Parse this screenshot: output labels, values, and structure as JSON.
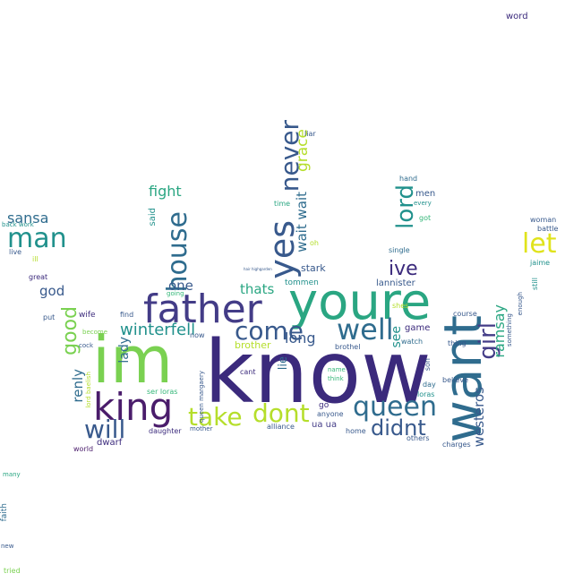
{
  "palette": {
    "navy": "#3b2a7c",
    "indigo": "#433c87",
    "blue": "#38598c",
    "steel": "#2f6c8e",
    "teal": "#21918c",
    "sea": "#2aa682",
    "green": "#35b779",
    "lime": "#7ad151",
    "yellowgreen": "#b5de2b",
    "yellow": "#e0e31c",
    "purple": "#4a1c6b"
  },
  "words": [
    {
      "text": "know",
      "color": "navy"
    },
    {
      "text": "im",
      "color": "lime"
    },
    {
      "text": "youre",
      "color": "sea"
    },
    {
      "text": "want",
      "color": "steel"
    },
    {
      "text": "father",
      "color": "indigo"
    },
    {
      "text": "king",
      "color": "purple"
    },
    {
      "text": "yes",
      "color": "blue"
    },
    {
      "text": "never",
      "color": "blue"
    },
    {
      "text": "house",
      "color": "steel"
    },
    {
      "text": "queen",
      "color": "steel"
    },
    {
      "text": "well",
      "color": "steel"
    },
    {
      "text": "come",
      "color": "blue"
    },
    {
      "text": "dont",
      "color": "yellowgreen"
    },
    {
      "text": "take",
      "color": "yellowgreen"
    },
    {
      "text": "will",
      "color": "blue"
    },
    {
      "text": "man",
      "color": "teal"
    },
    {
      "text": "let",
      "color": "yellow"
    },
    {
      "text": "lord",
      "color": "teal"
    },
    {
      "text": "girl",
      "color": "indigo"
    },
    {
      "text": "didnt",
      "color": "blue"
    },
    {
      "text": "good",
      "color": "lime"
    },
    {
      "text": "ive",
      "color": "navy"
    },
    {
      "text": "ramsay",
      "color": "sea"
    },
    {
      "text": "winterfell",
      "color": "teal"
    },
    {
      "text": "grace",
      "color": "yellowgreen"
    },
    {
      "text": "wait wait",
      "color": "steel"
    },
    {
      "text": "fight",
      "color": "sea"
    },
    {
      "text": "sansa",
      "color": "steel"
    },
    {
      "text": "thats",
      "color": "sea"
    },
    {
      "text": "long",
      "color": "blue"
    },
    {
      "text": "westeros",
      "color": "blue"
    },
    {
      "text": "god",
      "color": "blue"
    },
    {
      "text": "one",
      "color": "blue"
    },
    {
      "text": "renly",
      "color": "steel"
    },
    {
      "text": "lady",
      "color": "steel"
    },
    {
      "text": "stark",
      "color": "blue"
    },
    {
      "text": "lie",
      "color": "steel"
    },
    {
      "text": "see",
      "color": "teal"
    },
    {
      "text": "lannister",
      "color": "blue"
    },
    {
      "text": "tommen",
      "color": "teal"
    },
    {
      "text": "brother",
      "color": "yellowgreen"
    },
    {
      "text": "said",
      "color": "teal"
    },
    {
      "text": "hand",
      "color": "steel"
    },
    {
      "text": "men",
      "color": "blue"
    },
    {
      "text": "every",
      "color": "teal"
    },
    {
      "text": "time",
      "color": "sea"
    },
    {
      "text": "got",
      "color": "green"
    },
    {
      "text": "liar",
      "color": "blue"
    },
    {
      "text": "single",
      "color": "steel"
    },
    {
      "text": "oh",
      "color": "yellowgreen"
    },
    {
      "text": "shes",
      "color": "yellowgreen"
    },
    {
      "text": "game",
      "color": "navy"
    },
    {
      "text": "watch",
      "color": "steel"
    },
    {
      "text": "course",
      "color": "blue"
    },
    {
      "text": "thing",
      "color": "blue"
    },
    {
      "text": "son",
      "color": "blue"
    },
    {
      "text": "day",
      "color": "steel"
    },
    {
      "text": "believe",
      "color": "blue"
    },
    {
      "text": "loras",
      "color": "teal"
    },
    {
      "text": "others",
      "color": "blue"
    },
    {
      "text": "charges",
      "color": "blue"
    },
    {
      "text": "home",
      "color": "blue"
    },
    {
      "text": "brothel",
      "color": "blue"
    },
    {
      "text": "something",
      "color": "blue"
    },
    {
      "text": "enough",
      "color": "blue"
    },
    {
      "text": "still",
      "color": "teal"
    },
    {
      "text": "woman",
      "color": "blue"
    },
    {
      "text": "battle",
      "color": "blue"
    },
    {
      "text": "jaime",
      "color": "teal"
    },
    {
      "text": "back work",
      "color": "teal"
    },
    {
      "text": "live",
      "color": "blue"
    },
    {
      "text": "ill",
      "color": "yellowgreen"
    },
    {
      "text": "great",
      "color": "navy"
    },
    {
      "text": "put",
      "color": "blue"
    },
    {
      "text": "wife",
      "color": "navy"
    },
    {
      "text": "find",
      "color": "blue"
    },
    {
      "text": "going",
      "color": "green"
    },
    {
      "text": "become",
      "color": "lime"
    },
    {
      "text": "cock",
      "color": "blue"
    },
    {
      "text": "lord baelish",
      "color": "yellowgreen"
    },
    {
      "text": "ser loras",
      "color": "green"
    },
    {
      "text": "queen margaery",
      "color": "blue"
    },
    {
      "text": "now",
      "color": "blue"
    },
    {
      "text": "cant",
      "color": "navy"
    },
    {
      "text": "name",
      "color": "green"
    },
    {
      "text": "think",
      "color": "green"
    },
    {
      "text": "go",
      "color": "navy"
    },
    {
      "text": "anyone",
      "color": "blue"
    },
    {
      "text": "ua ua",
      "color": "indigo"
    },
    {
      "text": "alliance",
      "color": "blue"
    },
    {
      "text": "daughter",
      "color": "navy"
    },
    {
      "text": "mother",
      "color": "blue"
    },
    {
      "text": "dwarf",
      "color": "navy"
    },
    {
      "text": "world",
      "color": "purple"
    },
    {
      "text": "word",
      "color": "navy"
    },
    {
      "text": "many",
      "color": "sea"
    },
    {
      "text": "faith",
      "color": "steel"
    },
    {
      "text": "new",
      "color": "blue"
    },
    {
      "text": "tried",
      "color": "lime"
    },
    {
      "text": "hair highgarden",
      "color": "blue"
    }
  ]
}
